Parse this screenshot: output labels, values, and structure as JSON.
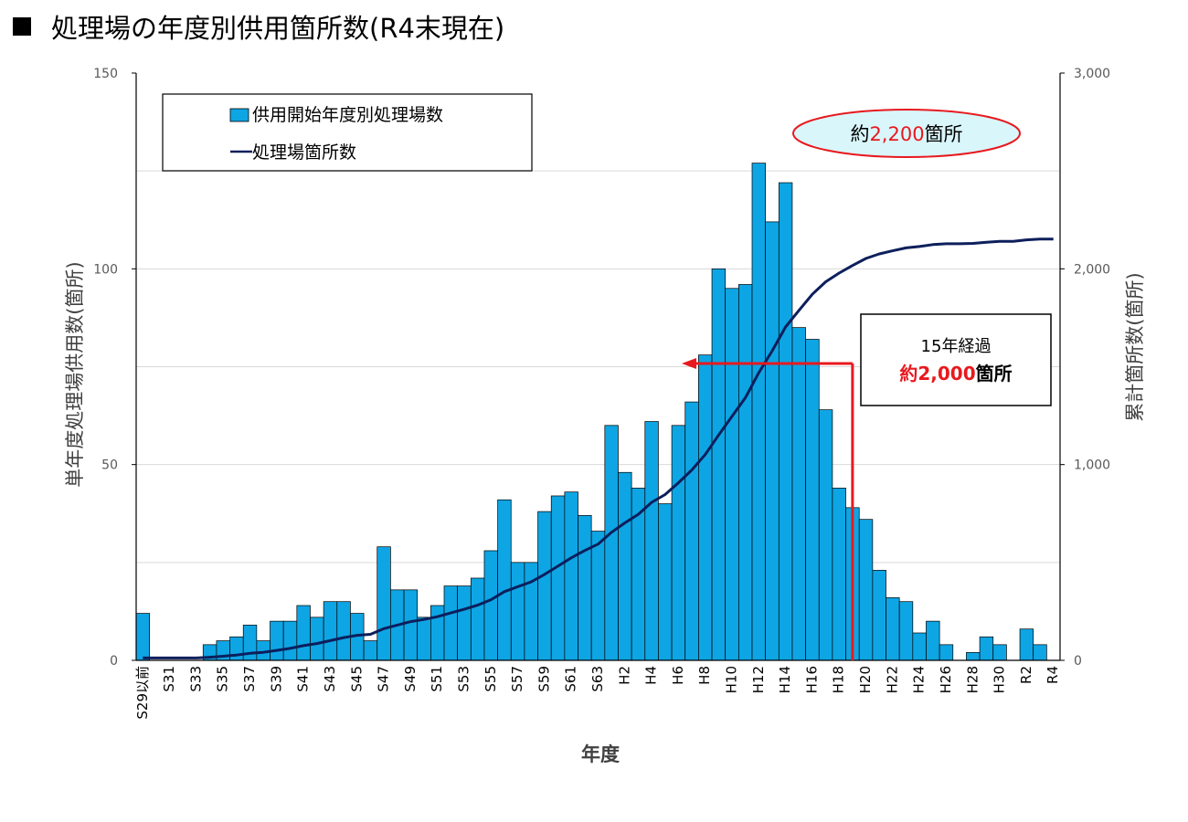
{
  "title": "処理場の年度別供用箇所数(R4末現在)",
  "chart_data": {
    "type": "bar",
    "categories": [
      "S29以前",
      "S30",
      "S31",
      "S32",
      "S33",
      "S34",
      "S35",
      "S36",
      "S37",
      "S38",
      "S39",
      "S40",
      "S41",
      "S42",
      "S43",
      "S44",
      "S45",
      "S46",
      "S47",
      "S48",
      "S49",
      "S50",
      "S51",
      "S52",
      "S53",
      "S54",
      "S55",
      "S56",
      "S57",
      "S58",
      "S59",
      "S60",
      "S61",
      "S62",
      "S63",
      "H1",
      "H2",
      "H3",
      "H4",
      "H5",
      "H6",
      "H7",
      "H8",
      "H9",
      "H10",
      "H11",
      "H12",
      "H13",
      "H14",
      "H15",
      "H16",
      "H17",
      "H18",
      "H19",
      "H20",
      "H21",
      "H22",
      "H23",
      "H24",
      "H25",
      "H26",
      "H27",
      "H28",
      "H29",
      "H30",
      "R1",
      "R2",
      "R3",
      "R4"
    ],
    "tick_labels": [
      "S29以前",
      "S31",
      "S33",
      "S35",
      "S37",
      "S39",
      "S41",
      "S43",
      "S45",
      "S47",
      "S49",
      "S51",
      "S53",
      "S55",
      "S57",
      "S59",
      "S61",
      "S63",
      "H2",
      "H4",
      "H6",
      "H8",
      "H10",
      "H12",
      "H14",
      "H16",
      "H18",
      "H20",
      "H22",
      "H24",
      "H26",
      "H28",
      "H30",
      "R2",
      "R4"
    ],
    "series": [
      {
        "name": "供用開始年度別処理場数",
        "type": "bar",
        "axis": "left",
        "color": "#0EA5E4",
        "values": [
          12,
          0,
          0,
          0,
          0,
          4,
          5,
          6,
          9,
          5,
          10,
          10,
          14,
          11,
          15,
          15,
          12,
          5,
          29,
          18,
          18,
          11,
          14,
          19,
          19,
          21,
          28,
          41,
          25,
          25,
          38,
          42,
          43,
          37,
          33,
          60,
          48,
          44,
          61,
          40,
          60,
          66,
          78,
          100,
          95,
          96,
          127,
          112,
          122,
          85,
          82,
          64,
          44,
          39,
          36,
          23,
          16,
          15,
          7,
          10,
          4,
          0,
          2,
          6,
          4,
          0,
          8,
          4,
          0
        ]
      },
      {
        "name": "処理場箇所数",
        "type": "line",
        "axis": "right",
        "color": "#0D1F5C",
        "values": [
          12,
          12,
          12,
          12,
          12,
          16,
          21,
          27,
          36,
          41,
          51,
          61,
          75,
          86,
          101,
          116,
          128,
          133,
          162,
          180,
          198,
          209,
          223,
          242,
          261,
          282,
          310,
          351,
          376,
          401,
          439,
          481,
          524,
          561,
          594,
          654,
          702,
          746,
          807,
          847,
          907,
          973,
          1051,
          1151,
          1246,
          1342,
          1469,
          1581,
          1703,
          1788,
          1870,
          1934,
          1978,
          2017,
          2053,
          2076,
          2092,
          2107,
          2114,
          2124,
          2128,
          2128,
          2130,
          2136,
          2140,
          2140,
          2148,
          2152,
          2152
        ]
      }
    ],
    "ylabel_left": "単年度処理場供用数(箇所)",
    "ylabel_right": "累計箇所数(箇所)",
    "xlabel": "年度",
    "ylim_left": [
      0,
      150
    ],
    "ylim_right": [
      0,
      3000
    ],
    "yticks_left": [
      "0",
      "50",
      "100",
      "150"
    ],
    "yticks_right": [
      "0",
      "1,000",
      "2,000",
      "3,000"
    ],
    "annotations": {
      "total_prefix": "約",
      "total_value": "2,200",
      "total_suffix": "箇所",
      "elapsed_line1": "15年経過",
      "elapsed_line2_prefix": "約",
      "elapsed_line2_value": "2,000",
      "elapsed_line2_suffix": "箇所",
      "marker_year": "H19"
    }
  },
  "colors": {
    "bar": "#0EA5E4",
    "line": "#0D1F5C",
    "highlight": "#E8191E",
    "ellipse_fill": "#D9F6FB"
  }
}
